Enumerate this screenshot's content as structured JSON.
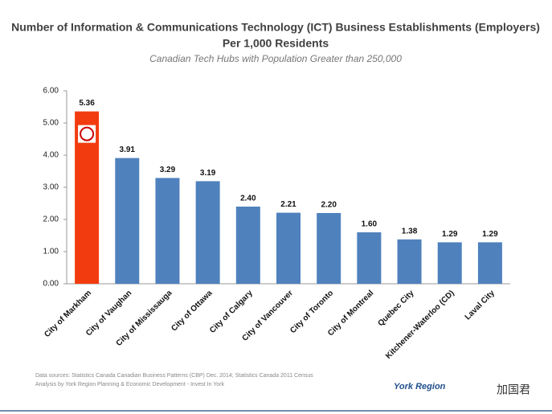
{
  "chart_data": {
    "type": "bar",
    "title": "Number of Information & Communications Technology (ICT) Business Establishments (Employers)",
    "title_line2": "Per 1,000 Residents",
    "subtitle": "Canadian Tech Hubs with Population Greater than 250,000",
    "categories": [
      "City of Markham",
      "City of Vaughan",
      "City of Mississauga",
      "City of Ottawa",
      "City of Calgary",
      "City of Vancouver",
      "City of Toronto",
      "City of Montreal",
      "Quebec City",
      "Kitchener-Waterloo (CD)",
      "Laval City"
    ],
    "values": [
      5.36,
      3.91,
      3.29,
      3.19,
      2.4,
      2.21,
      2.2,
      1.6,
      1.38,
      1.29,
      1.29
    ],
    "value_labels": [
      "5.36",
      "3.91",
      "3.29",
      "3.19",
      "2.40",
      "2.21",
      "2.20",
      "1.60",
      "1.38",
      "1.29",
      "1.29"
    ],
    "colors": [
      "#f23c10",
      "#4f81bd",
      "#4f81bd",
      "#4f81bd",
      "#4f81bd",
      "#4f81bd",
      "#4f81bd",
      "#4f81bd",
      "#4f81bd",
      "#4f81bd",
      "#4f81bd"
    ],
    "ylim": [
      0,
      6
    ],
    "yticks": [
      {
        "value": 0,
        "label": "0.00"
      },
      {
        "value": 1,
        "label": "1.00"
      },
      {
        "value": 2,
        "label": "2.00"
      },
      {
        "value": 3,
        "label": "3.00"
      },
      {
        "value": 4,
        "label": "4.00"
      },
      {
        "value": 5,
        "label": "5.00"
      },
      {
        "value": 6,
        "label": "6.00"
      }
    ],
    "source": [
      "Data sources: Statistics Canada Canadian Business Patterns (CBP) Dec. 2014; Statistics Canada 2011 Census",
      "Analysis by York Region Planning & Economic Development - Invest In York"
    ],
    "logo": "York Region",
    "watermark": "加国君"
  }
}
